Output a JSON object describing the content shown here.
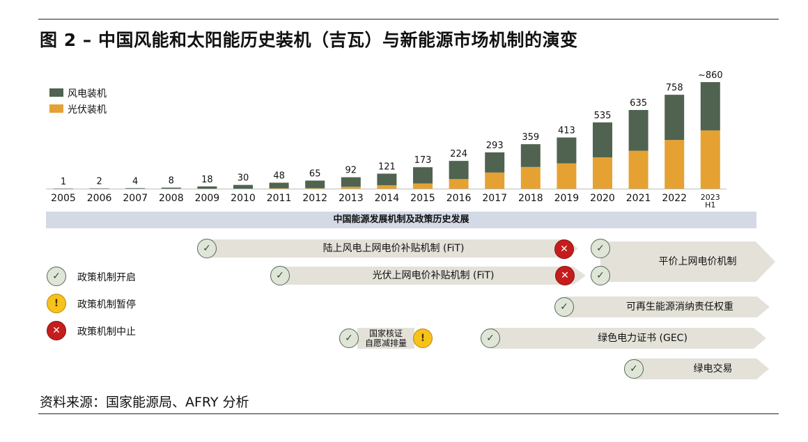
{
  "title": "图 2 – 中国风能和太阳能历史装机（吉瓦）与新能源市场机制的演变",
  "source": "资料来源：国家能源局、AFRY 分析",
  "colors": {
    "wind": "#4f6350",
    "solar": "#e5a232",
    "band": "#d3dae6",
    "arrow": "#e4e1d9",
    "green": "#566758",
    "yellow": "#f7c31b",
    "red": "#c51d1d"
  },
  "chart_data": {
    "type": "bar",
    "stacked": true,
    "title": "",
    "categories": [
      "2005",
      "2006",
      "2007",
      "2008",
      "2009",
      "2010",
      "2011",
      "2012",
      "2013",
      "2014",
      "2015",
      "2016",
      "2017",
      "2018",
      "2019",
      "2020",
      "2021",
      "2022",
      "2023 H1"
    ],
    "category_lines": [
      [
        "2005"
      ],
      [
        "2006"
      ],
      [
        "2007"
      ],
      [
        "2008"
      ],
      [
        "2009"
      ],
      [
        "2010"
      ],
      [
        "2011"
      ],
      [
        "2012"
      ],
      [
        "2013"
      ],
      [
        "2014"
      ],
      [
        "2015"
      ],
      [
        "2016"
      ],
      [
        "2017"
      ],
      [
        "2018"
      ],
      [
        "2019"
      ],
      [
        "2020"
      ],
      [
        "2021"
      ],
      [
        "2022"
      ],
      [
        "2023",
        "H1"
      ]
    ],
    "totals_labels": [
      "1",
      "2",
      "4",
      "8",
      "18",
      "30",
      "48",
      "65",
      "92",
      "121",
      "173",
      "224",
      "293",
      "359",
      "413",
      "535",
      "635",
      "758",
      "~860"
    ],
    "series": [
      {
        "name": "风电装机",
        "values": [
          1,
          2,
          4,
          8,
          18,
          30,
          45,
          61,
          77,
          94,
          131,
          147,
          163,
          184,
          209,
          282,
          329,
          365,
          390
        ]
      },
      {
        "name": "光伏装机",
        "values": [
          0,
          0,
          0,
          0,
          0,
          0,
          3,
          4,
          15,
          27,
          42,
          77,
          130,
          175,
          204,
          253,
          306,
          393,
          470
        ]
      }
    ],
    "legend": [
      "风电装机",
      "光伏装机"
    ],
    "legend_position": "top-left",
    "ylim": [
      0,
      860
    ],
    "xlabel": "",
    "ylabel": ""
  },
  "policy": {
    "band_title": "中国能源发展机制及政策历史发展",
    "legend": {
      "start": "政策机制开启",
      "pause": "政策机制暂停",
      "stop": "政策机制中止"
    },
    "icons": {
      "check": "✓",
      "pause": "!",
      "stop": "✕"
    },
    "arrows": {
      "wind_fit": "陆上风电上网电价补贴机制 (FiT)",
      "solar_fit": "光伏上网电价补贴机制 (FiT)",
      "parity": "平价上网电价机制",
      "rps": "可再生能源消纳责任权重",
      "ccer_line1": "国家核证",
      "ccer_line2": "自愿减排量",
      "gec": "绿色电力证书 (GEC)",
      "green_trade": "绿电交易"
    }
  }
}
